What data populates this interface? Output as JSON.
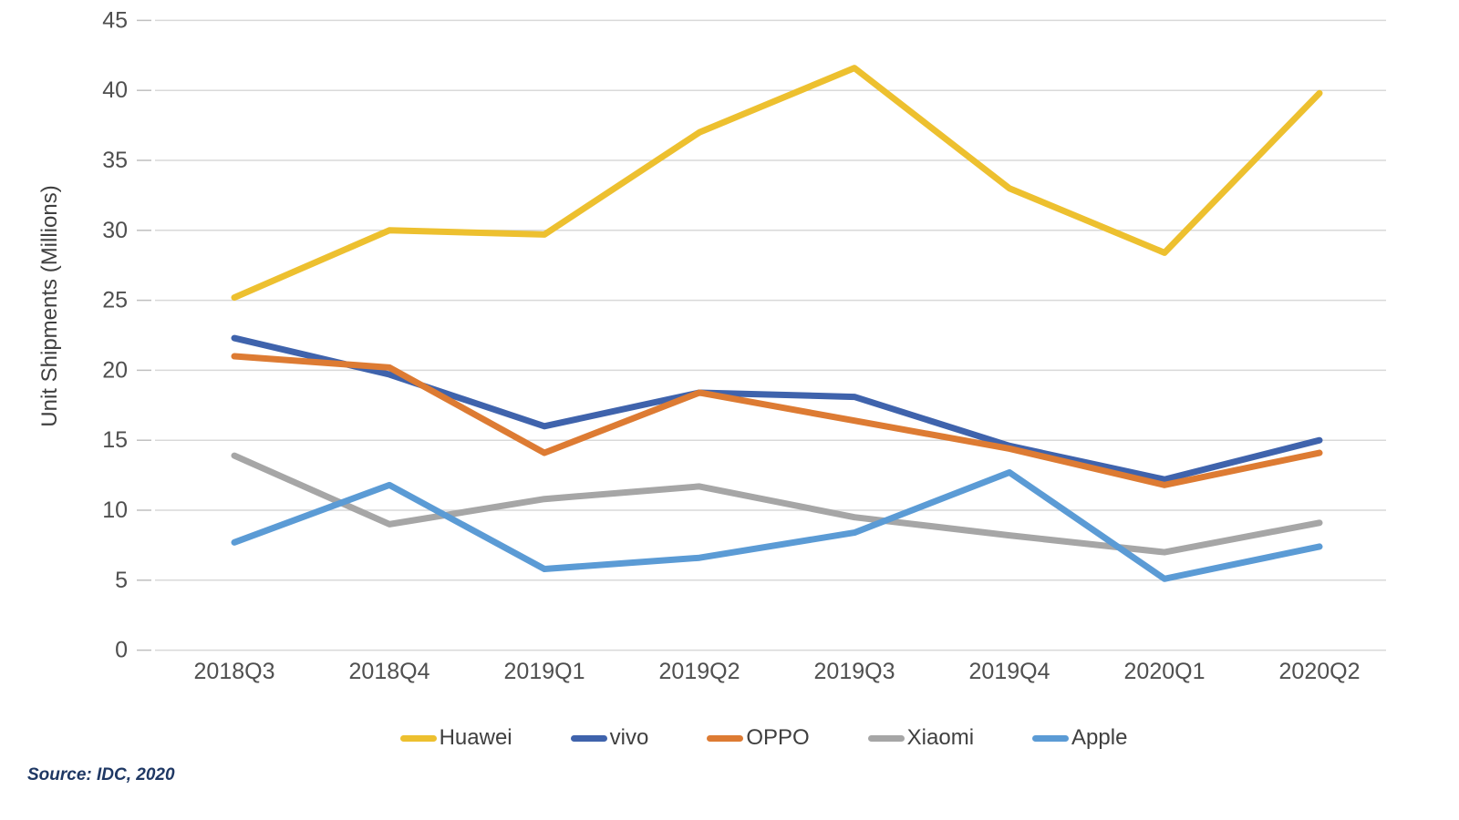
{
  "source_note": "Source: IDC, 2020",
  "chart_data": {
    "type": "line",
    "title": "",
    "xlabel": "",
    "ylabel": "Unit Shipments (Millions)",
    "ylim": [
      0,
      45
    ],
    "yticks": [
      0,
      5,
      10,
      15,
      20,
      25,
      30,
      35,
      40,
      45
    ],
    "grid": "horizontal",
    "grid_color": "#d9d9d9",
    "tick_color": "#bfbfbf",
    "axis_text_color": "#4f4f4f",
    "legend_position": "bottom",
    "categories": [
      "2018Q3",
      "2018Q4",
      "2019Q1",
      "2019Q2",
      "2019Q3",
      "2019Q4",
      "2020Q1",
      "2020Q2"
    ],
    "series": [
      {
        "name": "Huawei",
        "color": "#edc02f",
        "values": [
          25.2,
          30.0,
          29.7,
          37.0,
          41.6,
          33.0,
          28.4,
          39.8
        ]
      },
      {
        "name": "vivo",
        "color": "#3f63ac",
        "values": [
          22.3,
          19.7,
          16.0,
          18.4,
          18.1,
          14.6,
          12.2,
          15.0
        ]
      },
      {
        "name": "OPPO",
        "color": "#dd7b33",
        "values": [
          21.0,
          20.2,
          14.1,
          18.4,
          16.4,
          14.4,
          11.8,
          14.1
        ]
      },
      {
        "name": "Xiaomi",
        "color": "#a6a6a6",
        "values": [
          13.9,
          9.0,
          10.8,
          11.7,
          9.5,
          8.2,
          7.0,
          9.1
        ]
      },
      {
        "name": "Apple",
        "color": "#5b9bd5",
        "values": [
          7.7,
          11.8,
          5.8,
          6.6,
          8.4,
          12.7,
          5.1,
          7.4
        ]
      }
    ]
  }
}
